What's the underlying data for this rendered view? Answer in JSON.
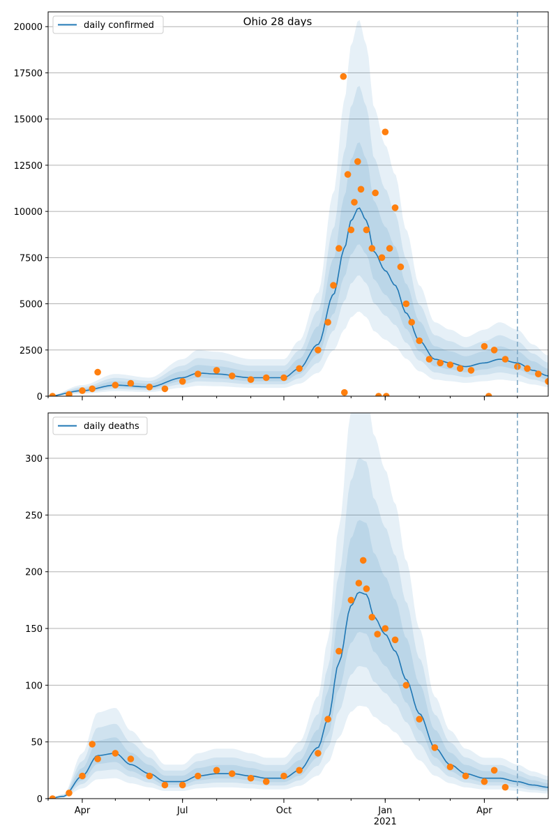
{
  "figure": {
    "title": "Ohio 28 days"
  },
  "colors": {
    "model_line": "#1f77b4",
    "observed": "#ff7f0e",
    "band": "#1f77b4",
    "forecast_marker": "#7fa8c4",
    "grid": "#b0b0b0"
  },
  "x_axis": {
    "start_date": "2020-03-01",
    "end_date": "2021-05-29",
    "forecast_date": "2021-05-01",
    "major_ticks": [
      {
        "date": "2020-04-01",
        "label": "Apr"
      },
      {
        "date": "2020-07-01",
        "label": "Jul"
      },
      {
        "date": "2020-10-01",
        "label": "Oct"
      },
      {
        "date": "2021-01-01",
        "label": "Jan"
      },
      {
        "date": "2021-04-01",
        "label": "Apr"
      }
    ],
    "year_label": {
      "date": "2021-01-01",
      "label": "2021"
    }
  },
  "chart_data": [
    {
      "type": "line",
      "legend": "daily confirmed",
      "legend_position": "upper-left",
      "grid": "horizontal",
      "ylim": [
        0,
        20800
      ],
      "yticks": [
        0,
        2500,
        5000,
        7500,
        10000,
        12500,
        15000,
        17500,
        20000
      ],
      "ytick_labels": [
        "0",
        "2500",
        "5000",
        "7500",
        "10000",
        "12500",
        "15000",
        "17500",
        "20000"
      ],
      "series": [
        {
          "name": "daily confirmed",
          "kind": "model",
          "x": [
            "2020-03-01",
            "2020-04-01",
            "2020-05-01",
            "2020-06-01",
            "2020-07-01",
            "2020-07-15",
            "2020-08-01",
            "2020-09-01",
            "2020-10-01",
            "2020-10-15",
            "2020-11-01",
            "2020-11-15",
            "2020-11-25",
            "2020-12-01",
            "2020-12-08",
            "2020-12-15",
            "2020-12-22",
            "2021-01-01",
            "2021-01-10",
            "2021-01-20",
            "2021-02-01",
            "2021-02-15",
            "2021-03-01",
            "2021-03-15",
            "2021-04-01",
            "2021-04-15",
            "2021-05-01",
            "2021-05-15",
            "2021-05-29"
          ],
          "y": [
            0,
            300,
            600,
            500,
            1000,
            1250,
            1200,
            1000,
            1000,
            1500,
            2800,
            5500,
            8000,
            9500,
            10200,
            9500,
            7800,
            6800,
            6000,
            4500,
            3000,
            2000,
            1800,
            1600,
            1800,
            2000,
            1800,
            1400,
            1100
          ]
        },
        {
          "name": "observed",
          "kind": "points",
          "x": [
            "2020-03-05",
            "2020-03-20",
            "2020-04-01",
            "2020-04-10",
            "2020-04-15",
            "2020-05-01",
            "2020-05-15",
            "2020-06-01",
            "2020-06-15",
            "2020-07-01",
            "2020-07-15",
            "2020-08-01",
            "2020-08-15",
            "2020-09-01",
            "2020-09-15",
            "2020-10-01",
            "2020-10-15",
            "2020-11-01",
            "2020-11-10",
            "2020-11-15",
            "2020-11-20",
            "2020-11-24",
            "2020-11-25",
            "2020-11-28",
            "2020-12-01",
            "2020-12-04",
            "2020-12-07",
            "2020-12-10",
            "2020-12-15",
            "2020-12-20",
            "2020-12-23",
            "2020-12-26",
            "2020-12-29",
            "2021-01-01",
            "2021-01-02",
            "2021-01-05",
            "2021-01-10",
            "2021-01-15",
            "2021-01-20",
            "2021-01-25",
            "2021-02-01",
            "2021-02-10",
            "2021-02-20",
            "2021-03-01",
            "2021-03-10",
            "2021-03-20",
            "2021-04-01",
            "2021-04-05",
            "2021-04-10",
            "2021-04-20",
            "2021-05-01",
            "2021-05-10",
            "2021-05-20",
            "2021-05-29"
          ],
          "y": [
            0,
            100,
            300,
            400,
            1300,
            600,
            700,
            500,
            400,
            800,
            1200,
            1400,
            1100,
            900,
            1000,
            1000,
            1500,
            2500,
            4000,
            6000,
            8000,
            17300,
            200,
            12000,
            9000,
            10500,
            12700,
            11200,
            9000,
            8000,
            11000,
            0,
            7500,
            14300,
            0,
            8000,
            10200,
            7000,
            5000,
            4000,
            3000,
            2000,
            1800,
            1700,
            1500,
            1400,
            2700,
            0,
            2500,
            2000,
            1600,
            1500,
            1200,
            800
          ]
        }
      ],
      "bands": "nested uncertainty intervals around model"
    },
    {
      "type": "line",
      "legend": "daily deaths",
      "legend_position": "upper-left",
      "grid": "horizontal",
      "ylim": [
        0,
        340
      ],
      "yticks": [
        0,
        50,
        100,
        150,
        200,
        250,
        300
      ],
      "ytick_labels": [
        "0",
        "50",
        "100",
        "150",
        "200",
        "250",
        "300"
      ],
      "series": [
        {
          "name": "daily deaths",
          "kind": "model",
          "x": [
            "2020-03-01",
            "2020-03-15",
            "2020-04-01",
            "2020-04-15",
            "2020-05-01",
            "2020-05-15",
            "2020-06-01",
            "2020-06-15",
            "2020-07-01",
            "2020-07-15",
            "2020-08-01",
            "2020-08-15",
            "2020-09-01",
            "2020-09-15",
            "2020-10-01",
            "2020-10-15",
            "2020-11-01",
            "2020-11-10",
            "2020-11-20",
            "2020-12-01",
            "2020-12-08",
            "2020-12-15",
            "2020-12-22",
            "2021-01-01",
            "2021-01-10",
            "2021-01-20",
            "2021-02-01",
            "2021-02-15",
            "2021-03-01",
            "2021-03-15",
            "2021-04-01",
            "2021-04-15",
            "2021-05-01",
            "2021-05-15",
            "2021-05-29"
          ],
          "y": [
            0,
            2,
            20,
            38,
            40,
            30,
            22,
            15,
            15,
            20,
            22,
            22,
            20,
            18,
            18,
            25,
            45,
            70,
            120,
            170,
            182,
            180,
            160,
            145,
            130,
            105,
            75,
            45,
            30,
            22,
            18,
            18,
            15,
            12,
            10
          ]
        },
        {
          "name": "observed",
          "kind": "points",
          "x": [
            "2020-03-05",
            "2020-03-20",
            "2020-04-01",
            "2020-04-10",
            "2020-04-15",
            "2020-05-01",
            "2020-05-15",
            "2020-06-01",
            "2020-06-15",
            "2020-07-01",
            "2020-07-15",
            "2020-08-01",
            "2020-08-15",
            "2020-09-01",
            "2020-09-15",
            "2020-10-01",
            "2020-10-15",
            "2020-11-01",
            "2020-11-10",
            "2020-11-20",
            "2020-12-01",
            "2020-12-08",
            "2020-12-12",
            "2020-12-15",
            "2020-12-20",
            "2020-12-25",
            "2021-01-01",
            "2021-01-10",
            "2021-01-20",
            "2021-02-01",
            "2021-02-15",
            "2021-03-01",
            "2021-03-15",
            "2021-04-01",
            "2021-04-10",
            "2021-04-20"
          ],
          "y": [
            0,
            5,
            20,
            48,
            35,
            40,
            35,
            20,
            12,
            12,
            20,
            25,
            22,
            18,
            15,
            20,
            25,
            40,
            70,
            130,
            175,
            190,
            210,
            185,
            160,
            145,
            150,
            140,
            100,
            70,
            45,
            28,
            20,
            15,
            25,
            10
          ]
        }
      ],
      "bands": "nested uncertainty intervals around model"
    }
  ]
}
